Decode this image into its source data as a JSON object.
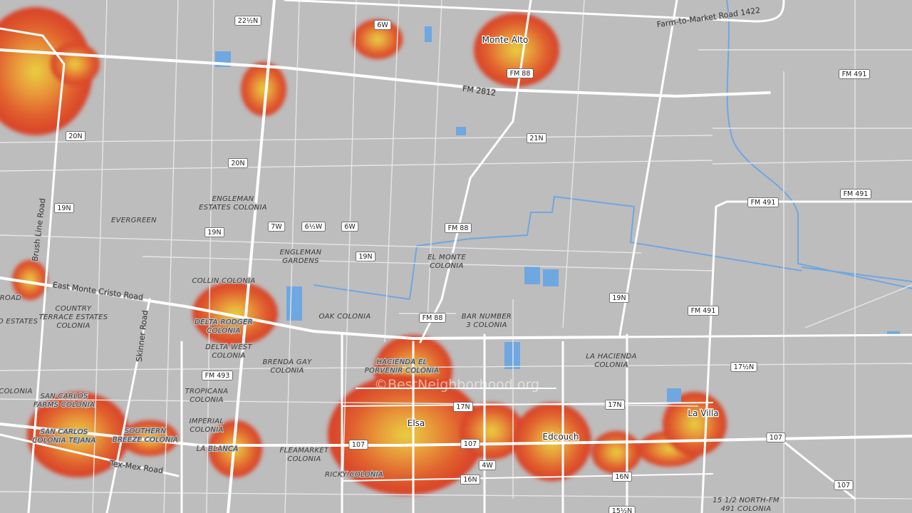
{
  "map": {
    "towns": [
      "Monte Alto",
      "Elsa",
      "Edcouch",
      "La Villa"
    ],
    "places": [
      [
        "EVERGREEN"
      ],
      [
        "ENGLEMAN",
        "ESTATES COLONIA"
      ],
      [
        "ENGLEMAN",
        "GARDENS"
      ],
      [
        "EL MONTE",
        "COLONIA"
      ],
      [
        "COLLIN COLONIA"
      ],
      [
        "COUNTRY",
        "TERRACE ESTATES",
        "COLONIA"
      ],
      [
        "ROAD"
      ],
      [
        "O ESTATES"
      ],
      [
        "OAK COLONIA"
      ],
      [
        "BAR NUMBER",
        "3 COLONIA"
      ],
      [
        "DELTA-RODGER",
        "COLONIA"
      ],
      [
        "DELTA WEST",
        "COLONIA"
      ],
      [
        "BRENDA GAY",
        "COLONIA"
      ],
      [
        "HACIENDA EL",
        "PORVENIR COLONIA"
      ],
      [
        "LA HACIENDA",
        "COLONIA"
      ],
      [
        "TROPICANA",
        "COLONIA"
      ],
      [
        "IMPERIAL",
        "COLONIA"
      ],
      [
        "LA BLANCA"
      ],
      [
        "SAN CARLOS",
        "FARMS COLONIA"
      ],
      [
        "SAN CARLOS",
        "COLONIA TEJANA"
      ],
      [
        "SOUTHERN",
        "BREEZE COLONIA"
      ],
      [
        "FLEAMARKET",
        "COLONIA"
      ],
      [
        "RICKY COLONIA"
      ],
      [
        "15 1/2 NORTH-FM",
        "491 COLONIA"
      ],
      [
        "COLONIA"
      ]
    ],
    "roads": [
      "Farm-to-Market Road 1422",
      "FM 2812",
      "Brush Line Road",
      "East Monte Cristo Road",
      "Skinner Road",
      "Tex-Mex Road"
    ],
    "shields": [
      "22½N",
      "6W",
      "FM 88",
      "20N",
      "21N",
      "20N",
      "FM 491",
      "FM 491",
      "FM 491",
      "19N",
      "19N",
      "7W",
      "6½W",
      "6W",
      "FM 88",
      "19N",
      "19N",
      "FM 491",
      "FM 88",
      "FM 493",
      "17½N",
      "17N",
      "17N",
      "107",
      "107",
      "107",
      "107",
      "4W",
      "16N",
      "16N",
      "15½N"
    ],
    "watermark": "©BestNeighborhood.org"
  }
}
